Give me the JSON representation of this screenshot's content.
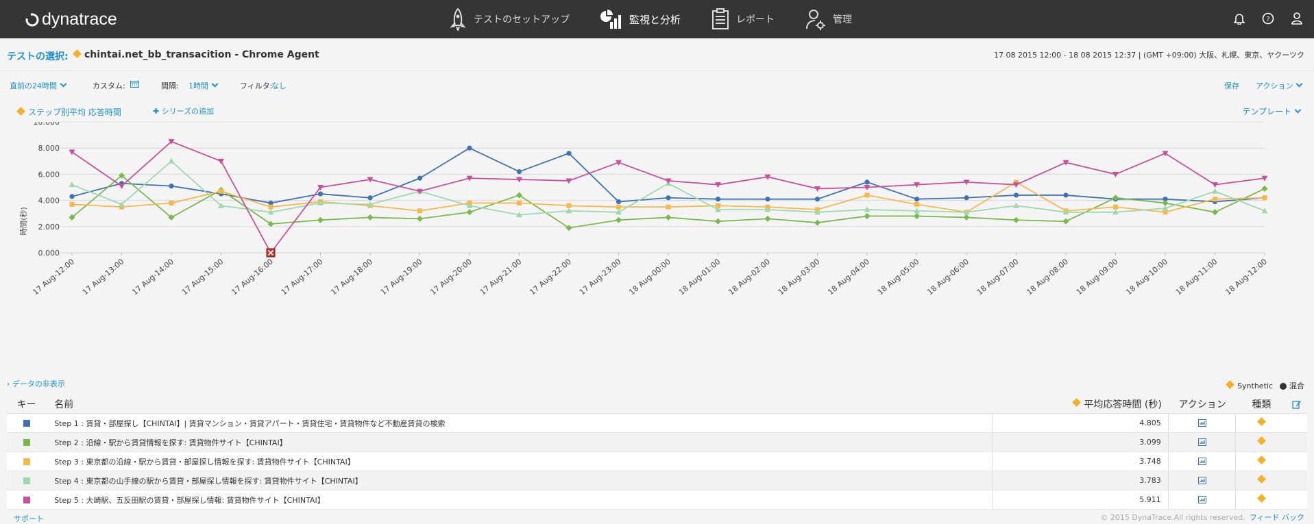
{
  "header": {
    "logo_text": "dynatrace",
    "nav": [
      {
        "label": "テストのセットアップ",
        "icon": "rocket-icon"
      },
      {
        "label": "監視と分析",
        "icon": "analytics-icon",
        "active": true
      },
      {
        "label": "レポート",
        "icon": "report-icon"
      },
      {
        "label": "管理",
        "icon": "admin-icon"
      }
    ],
    "icons": [
      "bell-icon",
      "help-icon",
      "user-icon"
    ]
  },
  "selection": {
    "label": "テストの選択:",
    "test_name": "chintai.net_bb_transacition - Chrome Agent",
    "date_range": "17 08 2015 12:00 - 18 08 2015 12:37  | (GMT +09:00) 大阪、札幌、東京、ヤクーツク"
  },
  "toolbar": {
    "period": "直前の24時間",
    "custom_label": "カスタム:",
    "interval_label": "間隔:",
    "interval_value": "1時間",
    "filter_label": "フィルタ:",
    "filter_value": "なし",
    "save": "保存",
    "action": "アクション"
  },
  "series_bar": {
    "series_label": "ステップ別平均 応答時間",
    "add_series": "シリーズの追加",
    "template": "テンプレート"
  },
  "chart_data": {
    "type": "line",
    "ylabel": "時間(秒)",
    "ylim": [
      0,
      10
    ],
    "yticks": [
      "0.000",
      "2.000",
      "4.000",
      "6.000",
      "8.000",
      "10.000"
    ],
    "grid": true,
    "categories": [
      "17 Aug-12:00",
      "17 Aug-13:00",
      "17 Aug-14:00",
      "17 Aug-15:00",
      "17 Aug-16:00",
      "17 Aug-17:00",
      "17 Aug-18:00",
      "17 Aug-19:00",
      "17 Aug-20:00",
      "17 Aug-21:00",
      "17 Aug-22:00",
      "17 Aug-23:00",
      "18 Aug-00:00",
      "18 Aug-01:00",
      "18 Aug-02:00",
      "18 Aug-03:00",
      "18 Aug-04:00",
      "18 Aug-05:00",
      "18 Aug-06:00",
      "18 Aug-07:00",
      "18 Aug-08:00",
      "18 Aug-09:00",
      "18 Aug-10:00",
      "18 Aug-11:00",
      "18 Aug-12:00"
    ],
    "series": [
      {
        "color": "#3d73b4",
        "marker": "circle",
        "values": [
          4.3,
          5.3,
          5.1,
          4.5,
          3.8,
          4.5,
          4.2,
          5.7,
          8.0,
          6.2,
          7.6,
          3.9,
          4.2,
          4.1,
          4.1,
          4.1,
          5.4,
          4.1,
          4.2,
          4.4,
          4.4,
          4.1,
          4.1,
          3.9,
          4.2
        ]
      },
      {
        "color": "#79b84a",
        "marker": "diamond",
        "values": [
          2.7,
          5.9,
          2.7,
          4.8,
          2.2,
          2.5,
          2.7,
          2.6,
          3.1,
          4.4,
          1.9,
          2.5,
          2.7,
          2.4,
          2.6,
          2.3,
          2.8,
          2.8,
          2.7,
          2.5,
          2.4,
          4.2,
          3.8,
          3.1,
          4.9
        ]
      },
      {
        "color": "#f7b84a",
        "marker": "square",
        "values": [
          3.7,
          3.5,
          3.8,
          4.7,
          3.5,
          3.9,
          3.6,
          3.2,
          3.8,
          3.8,
          3.6,
          3.5,
          3.5,
          3.6,
          3.5,
          3.3,
          4.4,
          3.7,
          3.1,
          5.4,
          3.2,
          3.5,
          3.1,
          4.1,
          4.2
        ]
      },
      {
        "color": "#9fd8ae",
        "marker": "triangle",
        "values": [
          5.2,
          3.7,
          7.0,
          3.6,
          3.1,
          3.8,
          3.7,
          4.7,
          3.6,
          2.9,
          3.2,
          3.1,
          5.3,
          3.3,
          3.3,
          3.1,
          3.3,
          3.2,
          3.1,
          3.6,
          3.1,
          3.1,
          3.4,
          4.7,
          3.2
        ]
      },
      {
        "color": "#c8509a",
        "marker": "triangle-down",
        "values": [
          7.7,
          5.1,
          8.5,
          7.0,
          0.0,
          5.0,
          5.6,
          4.7,
          5.7,
          5.6,
          5.5,
          6.9,
          5.5,
          5.2,
          5.8,
          4.9,
          5.0,
          5.2,
          5.4,
          5.2,
          6.9,
          6.0,
          7.6,
          5.2,
          5.7
        ]
      }
    ],
    "error_marker_index": 4
  },
  "data_toggle": "データの非表示",
  "legend_right": {
    "synthetic": "Synthetic",
    "mixed": "混合"
  },
  "table": {
    "headers": {
      "key": "キー",
      "name": "名前",
      "avg": "平均応答時間 (秒)",
      "action": "アクション",
      "type": "種類"
    },
    "rows": [
      {
        "color": "#3d73b4",
        "name": "Step 1 : 賃貸・部屋探し【CHINTAI】| 賃貸マンション・賃貸アパート・賃貸住宅・賃貸物件など不動産賃貸の検索",
        "avg": "4.805"
      },
      {
        "color": "#79b84a",
        "name": "Step 2 : 沿線・駅から賃貸情報を探す: 賃貸物件サイト【CHINTAI】",
        "avg": "3.099"
      },
      {
        "color": "#f7b84a",
        "name": "Step 3 : 東京都の沿線・駅から賃貸・部屋探し情報を探す: 賃貸物件サイト【CHINTAI】",
        "avg": "3.748"
      },
      {
        "color": "#9fd8ae",
        "name": "Step 4 : 東京都の山手線の駅から賃貸・部屋探し情報を探す: 賃貸物件サイト【CHINTAI】",
        "avg": "3.783"
      },
      {
        "color": "#c8509a",
        "name": "Step 5 : 大崎駅、五反田駅の賃貸・部屋探し情報: 賃貸物件サイト【CHINTAI】",
        "avg": "5.911"
      }
    ]
  },
  "footer": {
    "support": "サポート",
    "copyright": "© 2015 DynaTrace.All rights reserved.",
    "feedback": "フィード バック"
  }
}
